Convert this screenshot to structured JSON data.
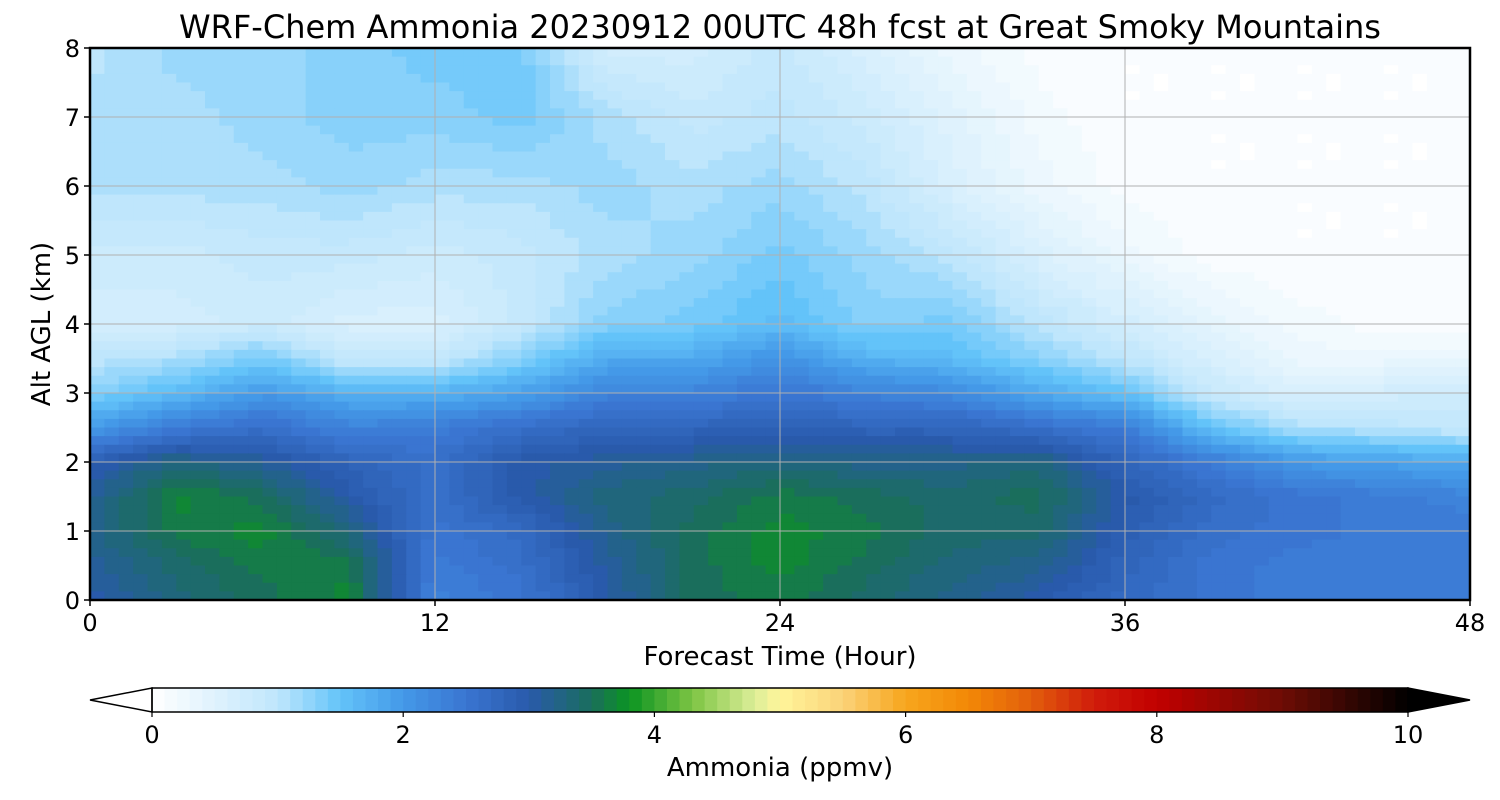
{
  "chart_data": {
    "type": "heatmap",
    "title": "WRF-Chem Ammonia  20230912 00UTC 48h fcst at Great Smoky Mountains",
    "xlabel": "Forecast Time (Hour)",
    "ylabel": "Alt AGL (km)",
    "xlim": [
      0,
      48
    ],
    "ylim": [
      0,
      8
    ],
    "x_ticks": [
      "0",
      "12",
      "24",
      "36",
      "48"
    ],
    "y_ticks": [
      "0",
      "1",
      "2",
      "3",
      "4",
      "5",
      "6",
      "7",
      "8"
    ],
    "grid": true,
    "x": [
      0,
      3,
      6,
      9,
      12,
      15,
      18,
      21,
      24,
      27,
      30,
      33,
      36,
      39,
      42,
      45,
      48
    ],
    "y": [
      0,
      0.5,
      1,
      1.5,
      2,
      2.5,
      3,
      3.5,
      4,
      5,
      6,
      7,
      8
    ],
    "z": [
      [
        3.0,
        3.3,
        3.5,
        3.7,
        2.3,
        2.5,
        3.0,
        3.5,
        3.6,
        3.4,
        3.2,
        3.0,
        2.7,
        2.5,
        2.4,
        2.4,
        2.4
      ],
      [
        3.1,
        3.4,
        3.6,
        3.6,
        2.4,
        2.6,
        3.1,
        3.5,
        3.7,
        3.5,
        3.3,
        3.2,
        2.8,
        2.5,
        2.4,
        2.4,
        2.4
      ],
      [
        3.2,
        3.6,
        3.7,
        3.3,
        2.5,
        2.7,
        3.2,
        3.5,
        3.7,
        3.6,
        3.4,
        3.4,
        2.9,
        2.6,
        2.5,
        2.4,
        2.4
      ],
      [
        3.1,
        3.7,
        3.5,
        3.0,
        2.6,
        3.0,
        3.3,
        3.4,
        3.6,
        3.5,
        3.4,
        3.5,
        3.0,
        2.7,
        2.5,
        2.4,
        2.3
      ],
      [
        2.9,
        3.3,
        3.1,
        2.8,
        2.6,
        3.0,
        3.1,
        3.2,
        3.3,
        3.2,
        3.2,
        3.3,
        2.8,
        2.4,
        2.0,
        1.9,
        1.8
      ],
      [
        2.0,
        2.4,
        2.6,
        2.3,
        2.4,
        2.6,
        2.8,
        2.8,
        2.9,
        2.8,
        2.8,
        2.6,
        2.4,
        1.5,
        1.1,
        1.0,
        0.9
      ],
      [
        1.3,
        1.6,
        2.0,
        1.7,
        1.7,
        1.9,
        2.3,
        2.3,
        2.5,
        2.3,
        2.2,
        1.8,
        1.5,
        0.9,
        0.6,
        0.7,
        0.8
      ],
      [
        1.0,
        1.1,
        1.4,
        0.9,
        0.9,
        1.3,
        1.8,
        1.8,
        2.1,
        1.7,
        1.6,
        1.3,
        1.0,
        0.6,
        0.3,
        0.3,
        0.3
      ],
      [
        0.7,
        0.7,
        0.8,
        0.6,
        0.6,
        0.9,
        1.3,
        1.4,
        1.6,
        1.3,
        1.4,
        1.0,
        0.7,
        0.4,
        0.2,
        0.1,
        0.1
      ],
      [
        0.8,
        0.8,
        0.9,
        0.9,
        0.8,
        0.9,
        1.1,
        1.2,
        1.4,
        1.2,
        1.0,
        0.6,
        0.3,
        0.1,
        0.05,
        0.05,
        0.05
      ],
      [
        1.1,
        1.1,
        1.1,
        1.2,
        1.1,
        1.1,
        1.2,
        1.1,
        1.2,
        1.0,
        0.6,
        0.3,
        0.1,
        0.05,
        0.05,
        0.05,
        0.05
      ],
      [
        1.1,
        1.1,
        1.2,
        1.3,
        1.3,
        1.4,
        1.1,
        0.9,
        1.0,
        0.8,
        0.5,
        0.2,
        0.05,
        0.05,
        0.05,
        0.05,
        0.05
      ],
      [
        1.0,
        1.2,
        1.2,
        1.3,
        1.4,
        1.4,
        0.7,
        0.7,
        0.9,
        0.6,
        0.3,
        0.1,
        0.05,
        0.05,
        0.05,
        0.05,
        0.05
      ]
    ]
  },
  "colorbar": {
    "label": "Ammonia  (ppmv)",
    "tick_labels": [
      "0",
      "2",
      "4",
      "6",
      "8",
      "10"
    ],
    "min": 0,
    "max": 10,
    "extend": "both",
    "stops": [
      {
        "v": 0.0,
        "color": "#ffffff"
      },
      {
        "v": 0.5,
        "color": "#dff2fd"
      },
      {
        "v": 1.0,
        "color": "#bfe6fc"
      },
      {
        "v": 1.5,
        "color": "#63c3f9"
      },
      {
        "v": 2.0,
        "color": "#4499e8"
      },
      {
        "v": 2.5,
        "color": "#3a75d1"
      },
      {
        "v": 3.0,
        "color": "#295aab"
      },
      {
        "v": 3.5,
        "color": "#1a6e5c"
      },
      {
        "v": 3.8,
        "color": "#0b9422"
      },
      {
        "v": 4.3,
        "color": "#7cc443"
      },
      {
        "v": 4.8,
        "color": "#ddee98"
      },
      {
        "v": 5.0,
        "color": "#fff59a"
      },
      {
        "v": 5.5,
        "color": "#fbd279"
      },
      {
        "v": 6.0,
        "color": "#f7a61d"
      },
      {
        "v": 6.5,
        "color": "#f38806"
      },
      {
        "v": 7.0,
        "color": "#e25e0c"
      },
      {
        "v": 7.5,
        "color": "#d01c0b"
      },
      {
        "v": 8.0,
        "color": "#c10000"
      },
      {
        "v": 9.0,
        "color": "#6e0d05"
      },
      {
        "v": 10.0,
        "color": "#000000"
      }
    ]
  }
}
